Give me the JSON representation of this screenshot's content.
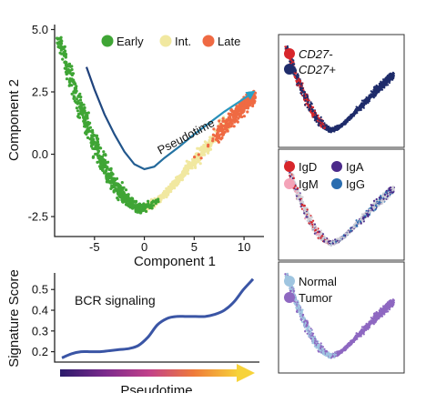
{
  "chart_data": [
    {
      "type": "scatter",
      "xlabel": "Component 1",
      "ylabel": "Component 2",
      "x_ticks": [
        "-5",
        "0",
        "5",
        "10"
      ],
      "y_ticks": [
        "5.0",
        "2.5",
        "0.0",
        "-2.5"
      ],
      "xlim": [
        -9,
        12
      ],
      "ylim": [
        -3.3,
        5.2
      ],
      "legend": {
        "placement": "top",
        "entries": [
          {
            "label": "Early",
            "color": "#3fa535"
          },
          {
            "label": "Int.",
            "color": "#f1e8a0"
          },
          {
            "label": "Late",
            "color": "#ef6a43"
          }
        ]
      },
      "trajectory_label": "Pseudotime",
      "trajectory_colors": [
        "#1f3f7a",
        "#29a3c8"
      ],
      "trajectory": {
        "x": [
          -5.8,
          -5.0,
          -4.0,
          -3.0,
          -2.0,
          -1.0,
          0.0,
          1.0,
          2.0,
          3.5,
          5.0,
          6.5,
          8.0,
          9.5,
          10.6
        ],
        "y": [
          3.5,
          2.6,
          1.6,
          0.8,
          0.1,
          -0.4,
          -0.6,
          -0.5,
          -0.15,
          0.3,
          0.8,
          1.25,
          1.7,
          2.1,
          2.4
        ]
      },
      "manifold": {
        "x": [
          -8.5,
          -7.5,
          -6.5,
          -5.5,
          -4.5,
          -3.5,
          -2.5,
          -1.5,
          -0.5,
          0.5,
          1.5,
          2.5,
          3.5,
          4.5,
          5.5,
          6.5,
          7.5,
          8.5,
          9.5,
          10.3,
          11.0
        ],
        "y": [
          4.6,
          3.3,
          2.0,
          0.9,
          -0.1,
          -0.9,
          -1.5,
          -1.9,
          -2.2,
          -2.1,
          -1.8,
          -1.4,
          -1.0,
          -0.5,
          -0.05,
          0.4,
          0.85,
          1.3,
          1.75,
          2.1,
          2.3
        ],
        "stage": [
          "Early",
          "Early",
          "Early",
          "Early",
          "Early",
          "Early",
          "Early",
          "Early",
          "Early",
          "Int.",
          "Int.",
          "Int.",
          "Int.",
          "Int.",
          "Int.",
          "Int.",
          "Late",
          "Late",
          "Late",
          "Late",
          "Late"
        ]
      }
    },
    {
      "type": "line",
      "xlabel": "Pseudotime",
      "ylabel": "Signature Score",
      "y_ticks": [
        "0.5",
        "0.4",
        "0.3",
        "0.2"
      ],
      "ylim": [
        0.15,
        0.58
      ],
      "annotation": "BCR signaling",
      "line_color": "#3a55a5",
      "gradient_colors": [
        "#2b1b6b",
        "#7a2a8c",
        "#c2418a",
        "#ef7b3a",
        "#f7d33a"
      ],
      "series": [
        {
          "x": [
            0,
            0.05,
            0.1,
            0.15,
            0.2,
            0.25,
            0.3,
            0.35,
            0.4,
            0.45,
            0.5,
            0.55,
            0.6,
            0.65,
            0.7,
            0.75,
            0.8,
            0.85,
            0.9,
            0.95,
            1.0
          ],
          "y": [
            0.17,
            0.19,
            0.2,
            0.2,
            0.2,
            0.205,
            0.21,
            0.215,
            0.23,
            0.27,
            0.33,
            0.36,
            0.37,
            0.37,
            0.37,
            0.37,
            0.38,
            0.4,
            0.44,
            0.5,
            0.55
          ]
        }
      ]
    },
    {
      "type": "scatter",
      "panel": "CD27",
      "legend": {
        "placement": "top-left",
        "entries": [
          {
            "label": "CD27-",
            "color": "#d7262b"
          },
          {
            "label": "CD27+",
            "color": "#1f2c6b"
          }
        ]
      }
    },
    {
      "type": "scatter",
      "panel": "Isotype",
      "legend": {
        "placement": "top-left",
        "entries": [
          {
            "label": "IgD",
            "color": "#d7262b"
          },
          {
            "label": "IgA",
            "color": "#4b2a8a"
          },
          {
            "label": "IgM",
            "color": "#f4a3b8"
          },
          {
            "label": "IgG",
            "color": "#2a6db0"
          }
        ]
      }
    },
    {
      "type": "scatter",
      "panel": "Tissue",
      "legend": {
        "placement": "top-left",
        "entries": [
          {
            "label": "Normal",
            "color": "#9fc5e0"
          },
          {
            "label": "Tumor",
            "color": "#8e68c1"
          }
        ]
      }
    }
  ]
}
